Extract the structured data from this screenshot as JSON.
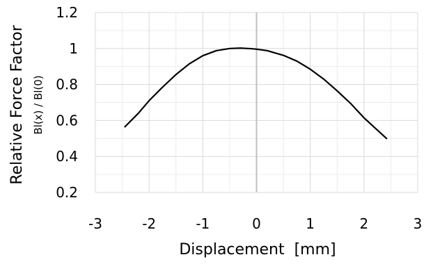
{
  "chart_data": {
    "type": "line",
    "title": "",
    "xlabel": "Displacement  [mm]",
    "ylabel": "Relative Force Factor",
    "ylabel_sub": "Bl(x) / Bl(0)",
    "xlim": [
      -3,
      3
    ],
    "ylim": [
      0.2,
      1.2
    ],
    "xticks": [
      -3,
      -2,
      -1,
      0,
      1,
      2,
      3
    ],
    "yticks": [
      0.2,
      0.4,
      0.6,
      0.8,
      1,
      1.2
    ],
    "xtick_labels": [
      "-3",
      "-2",
      "-1",
      "0",
      "1",
      "2",
      "3"
    ],
    "ytick_labels": [
      "0.2",
      "0.4",
      "0.6",
      "0.8",
      "1",
      "1.2"
    ],
    "grid": true,
    "minor_grid": true,
    "zero_line_color": "#bfbfbf",
    "grid_color": "#d9d9d9",
    "minor_grid_color": "#ececec",
    "line_color": "#000000",
    "legend": "none",
    "series": [
      {
        "x": [
          -2.45,
          -2.2,
          -2.0,
          -1.75,
          -1.5,
          -1.25,
          -1.0,
          -0.75,
          -0.5,
          -0.3,
          -0.1,
          0.0,
          0.2,
          0.5,
          0.75,
          1.0,
          1.25,
          1.5,
          1.75,
          2.0,
          2.2,
          2.42
        ],
        "y": [
          0.565,
          0.64,
          0.71,
          0.785,
          0.855,
          0.915,
          0.96,
          0.988,
          1.0,
          1.002,
          0.999,
          0.996,
          0.988,
          0.962,
          0.93,
          0.885,
          0.83,
          0.765,
          0.695,
          0.615,
          0.56,
          0.5
        ]
      }
    ]
  }
}
